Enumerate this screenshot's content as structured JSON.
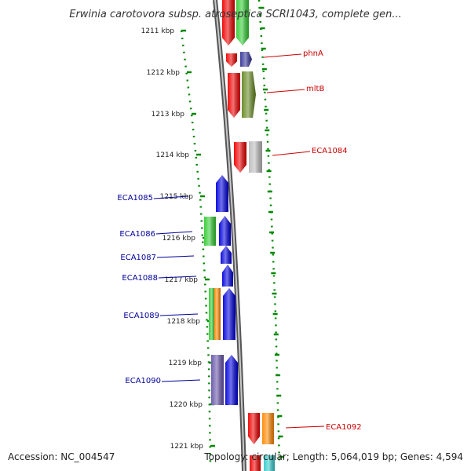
{
  "title": "Erwinia carotovora subsp. atroseptica SCRI1043, complete gen...",
  "footer": {
    "accession": "Accession: NC_004547",
    "topology": "Topology: circular; Length: 5,064,019 bp; Genes: 4,594"
  },
  "colors": {
    "leading_label": "#cc0000",
    "lagging_label": "#000099",
    "tick_dots": "#008800",
    "backbone": "#888888"
  },
  "ticks": [
    {
      "kbp": 1211,
      "label": "1211 kbp"
    },
    {
      "kbp": 1212,
      "label": "1212 kbp"
    },
    {
      "kbp": 1213,
      "label": "1213 kbp"
    },
    {
      "kbp": 1214,
      "label": "1214 kbp"
    },
    {
      "kbp": 1215,
      "label": "1215 kbp"
    },
    {
      "kbp": 1216,
      "label": "1216 kbp"
    },
    {
      "kbp": 1217,
      "label": "1217 kbp"
    },
    {
      "kbp": 1218,
      "label": "1218 kbp"
    },
    {
      "kbp": 1219,
      "label": "1219 kbp"
    },
    {
      "kbp": 1220,
      "label": "1220 kbp"
    },
    {
      "kbp": 1221,
      "label": "1221 kbp"
    }
  ],
  "gene_labels": [
    {
      "name": "phnA",
      "strand": "leading"
    },
    {
      "name": "mltB",
      "strand": "leading"
    },
    {
      "name": "ECA1084",
      "strand": "leading"
    },
    {
      "name": "ECA1085",
      "strand": "lagging"
    },
    {
      "name": "ECA1086",
      "strand": "lagging"
    },
    {
      "name": "ECA1087",
      "strand": "lagging"
    },
    {
      "name": "ECA1088",
      "strand": "lagging"
    },
    {
      "name": "ECA1089",
      "strand": "lagging"
    },
    {
      "name": "ECA1090",
      "strand": "lagging"
    },
    {
      "name": "ECA1092",
      "strand": "leading"
    }
  ],
  "features": [
    {
      "gene": "",
      "color": "#ee0000"
    },
    {
      "gene": "",
      "color": "#33cc33"
    },
    {
      "gene": "phnA",
      "color": "#ee0000"
    },
    {
      "gene": "phnA",
      "color": "#333399"
    },
    {
      "gene": "mltB",
      "color": "#ee0000"
    },
    {
      "gene": "mltB",
      "color": "#668822"
    },
    {
      "gene": "ECA1084",
      "color": "#ee0000"
    },
    {
      "gene": "ECA1084",
      "color": "#bbbbbb"
    },
    {
      "gene": "ECA1085",
      "color": "#0000dd"
    },
    {
      "gene": "ECA1086",
      "color": "#33cc33"
    },
    {
      "gene": "ECA1086",
      "color": "#0000dd"
    },
    {
      "gene": "ECA1087",
      "color": "#0000dd"
    },
    {
      "gene": "ECA1088",
      "color": "#0000dd"
    },
    {
      "gene": "ECA1089",
      "color": "#33cc33"
    },
    {
      "gene": "ECA1089",
      "color": "#ff8800"
    },
    {
      "gene": "ECA1089",
      "color": "#0000dd"
    },
    {
      "gene": "ECA1090",
      "color": "#6655aa"
    },
    {
      "gene": "ECA1090",
      "color": "#0000dd"
    },
    {
      "gene": "ECA1092",
      "color": "#ee0000"
    },
    {
      "gene": "ECA1092",
      "color": "#ff8800"
    },
    {
      "gene": "",
      "color": "#ee0000"
    },
    {
      "gene": "",
      "color": "#33cccc"
    }
  ]
}
